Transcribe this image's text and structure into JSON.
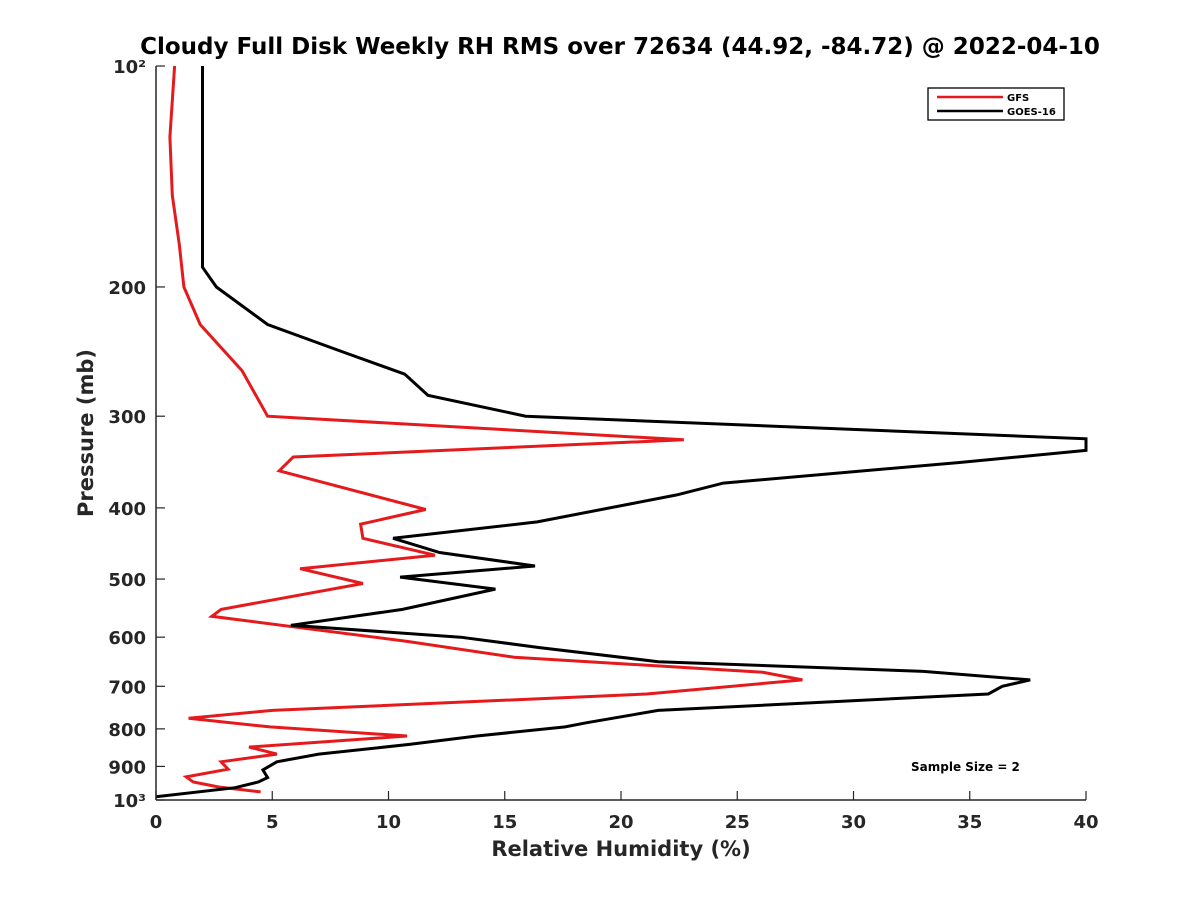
{
  "chart_data": {
    "type": "line",
    "title": "Cloudy Full Disk Weekly RH RMS over 72634 (44.92, -84.72) @ 2022-04-10",
    "xlabel": "Relative Humidity (%)",
    "ylabel": "Pressure (mb)",
    "xlim": [
      0,
      40
    ],
    "ylim": [
      100,
      1000
    ],
    "y_scale": "log",
    "y_reversed": true,
    "x_ticks": [
      0,
      5,
      10,
      15,
      20,
      25,
      30,
      35,
      40
    ],
    "x_tick_labels": [
      "0",
      "5",
      "10",
      "15",
      "20",
      "25",
      "30",
      "35",
      "40"
    ],
    "y_ticks": [
      100,
      200,
      300,
      400,
      500,
      600,
      700,
      800,
      900,
      1000
    ],
    "y_tick_labels": [
      "10²",
      "200",
      "300",
      "400",
      "500",
      "600",
      "700",
      "800",
      "900",
      "10³"
    ],
    "grid": false,
    "legend_position": "top-right",
    "annotation": "Sample Size = 2",
    "series": [
      {
        "name": "GFS",
        "color": "#e41a1c",
        "points": [
          [
            0.8,
            100
          ],
          [
            0.6,
            125
          ],
          [
            0.7,
            150
          ],
          [
            1.0,
            175
          ],
          [
            1.2,
            200
          ],
          [
            1.9,
            225
          ],
          [
            3.7,
            260
          ],
          [
            4.8,
            300
          ],
          [
            22.7,
            323
          ],
          [
            5.9,
            341
          ],
          [
            5.3,
            356
          ],
          [
            11.6,
            402
          ],
          [
            8.8,
            421
          ],
          [
            8.9,
            440
          ],
          [
            12.0,
            464
          ],
          [
            6.2,
            484
          ],
          [
            8.9,
            507
          ],
          [
            2.8,
            550
          ],
          [
            2.4,
            562
          ],
          [
            10.8,
            608
          ],
          [
            15.4,
            639
          ],
          [
            26.1,
            670
          ],
          [
            27.8,
            686
          ],
          [
            21.1,
            717
          ],
          [
            5.0,
            755
          ],
          [
            1.4,
            774
          ],
          [
            4.9,
            795
          ],
          [
            10.8,
            818
          ],
          [
            4.0,
            847
          ],
          [
            5.2,
            866
          ],
          [
            2.8,
            887
          ],
          [
            3.1,
            908
          ],
          [
            1.3,
            930
          ],
          [
            1.6,
            945
          ],
          [
            2.7,
            960
          ],
          [
            4.5,
            975
          ]
        ]
      },
      {
        "name": "GOES-16",
        "color": "#000000",
        "points": [
          [
            2.0,
            100
          ],
          [
            2.0,
            125
          ],
          [
            2.0,
            150
          ],
          [
            2.0,
            175
          ],
          [
            2.0,
            188
          ],
          [
            2.6,
            200
          ],
          [
            4.8,
            225
          ],
          [
            8.0,
            245
          ],
          [
            10.7,
            263
          ],
          [
            11.7,
            281
          ],
          [
            15.9,
            300
          ],
          [
            40.0,
            322
          ],
          [
            40.0,
            334
          ],
          [
            34.5,
            347
          ],
          [
            24.4,
            370
          ],
          [
            22.4,
            384
          ],
          [
            16.4,
            418
          ],
          [
            10.2,
            440
          ],
          [
            12.2,
            460
          ],
          [
            16.3,
            480
          ],
          [
            10.5,
            497
          ],
          [
            14.6,
            516
          ],
          [
            10.6,
            550
          ],
          [
            5.8,
            578
          ],
          [
            13.1,
            600
          ],
          [
            16.5,
            620
          ],
          [
            21.6,
            648
          ],
          [
            33.0,
            668
          ],
          [
            37.6,
            686
          ],
          [
            36.4,
            700
          ],
          [
            35.8,
            717
          ],
          [
            21.6,
            755
          ],
          [
            18.5,
            785
          ],
          [
            17.6,
            795
          ],
          [
            13.8,
            818
          ],
          [
            10.9,
            840
          ],
          [
            7.0,
            866
          ],
          [
            5.2,
            887
          ],
          [
            4.6,
            910
          ],
          [
            4.8,
            932
          ],
          [
            4.4,
            945
          ],
          [
            3.4,
            962
          ],
          [
            0.0,
            990
          ]
        ]
      }
    ]
  },
  "colors": {
    "axis": "#262626",
    "background": "#ffffff"
  }
}
